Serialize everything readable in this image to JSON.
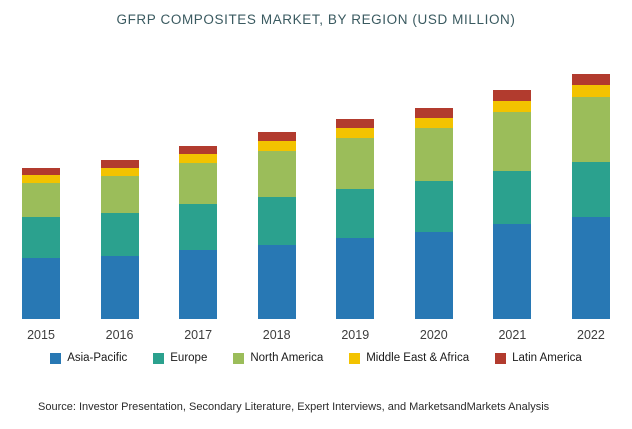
{
  "source": "Source:  Investor Presentation, Secondary Literature, Expert Interviews, and MarketsandMarkets Analysis",
  "chart_data": {
    "type": "bar",
    "stacked": true,
    "title": "GFRP COMPOSITES MARKET, BY REGION (USD MILLION)",
    "xlabel": "",
    "ylabel": "USD Million",
    "ylim": [
      0,
      250
    ],
    "grid": false,
    "legend_position": "bottom",
    "categories": [
      "2015",
      "2016",
      "2017",
      "2018",
      "2019",
      "2020",
      "2021",
      "2022"
    ],
    "series": [
      {
        "name": "Asia-Pacific",
        "color": "#2878b4",
        "values": [
          60,
          62,
          68,
          73,
          79,
          85,
          93,
          100
        ]
      },
      {
        "name": "Europe",
        "color": "#2ba18e",
        "values": [
          40,
          42,
          45,
          47,
          48,
          50,
          52,
          54
        ]
      },
      {
        "name": "North America",
        "color": "#9bbd5a",
        "values": [
          33,
          36,
          40,
          45,
          50,
          52,
          58,
          64
        ]
      },
      {
        "name": "Middle East & Africa",
        "color": "#f3c300",
        "values": [
          8,
          8,
          9,
          9,
          10,
          10,
          11,
          11
        ]
      },
      {
        "name": "Latin America",
        "color": "#b23b2e",
        "values": [
          7,
          8,
          8,
          9,
          9,
          10,
          10,
          11
        ]
      }
    ]
  }
}
